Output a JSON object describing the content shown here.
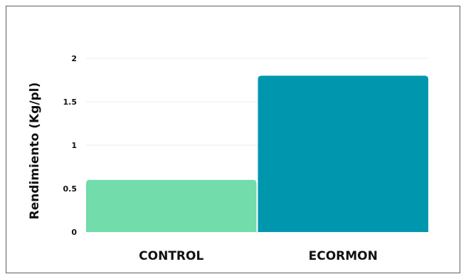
{
  "chart_data": {
    "type": "bar",
    "categories": [
      "CONTROL",
      "ECORMON"
    ],
    "values": [
      0.6,
      1.8
    ],
    "colors": [
      "#72dcaa",
      "#0097ae"
    ],
    "title": "",
    "xlabel": "",
    "ylabel": "Rendimiento (Kg/pl)",
    "ylim": [
      0,
      2
    ],
    "yticks": [
      0,
      0.5,
      1,
      1.5,
      2
    ],
    "grid": true,
    "legend": "none"
  }
}
